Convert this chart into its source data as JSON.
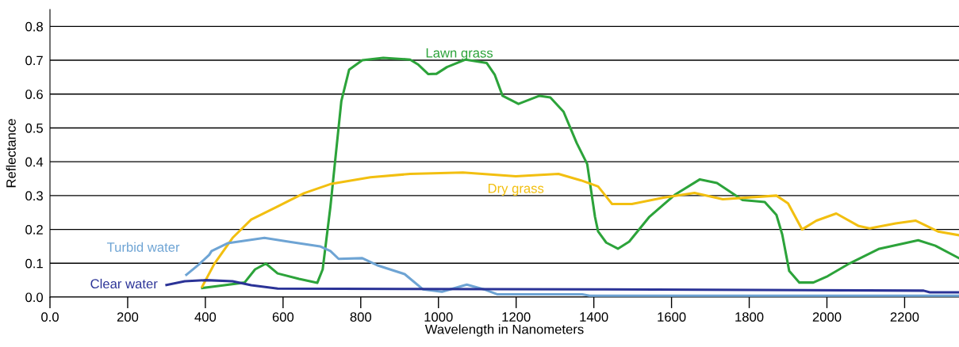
{
  "chart_data": {
    "type": "line",
    "xlabel": "Wavelength in Nanometers",
    "ylabel": "Reflectance",
    "xlim": [
      0,
      2340
    ],
    "ylim": [
      0,
      0.85
    ],
    "xticks": [
      {
        "value": 0,
        "label": "0.0"
      },
      200,
      400,
      600,
      800,
      1000,
      1200,
      1400,
      1600,
      1800,
      2000,
      2200
    ],
    "yticks": [
      {
        "value": 0,
        "label": "0.0"
      },
      0.1,
      0.2,
      0.3,
      0.4,
      0.5,
      0.6,
      0.7,
      0.8
    ],
    "grid": "y",
    "legend": false,
    "marker": "none",
    "line_style": "solid",
    "series": [
      {
        "name": "Lawn grass",
        "color": "#2ca33a",
        "x": [
          392,
          449,
          501,
          528,
          556,
          586,
          641,
          688,
          702,
          722,
          736,
          750,
          770,
          804,
          858,
          927,
          947,
          974,
          995,
          1022,
          1070,
          1124,
          1145,
          1165,
          1206,
          1260,
          1288,
          1322,
          1356,
          1383,
          1403,
          1411,
          1432,
          1462,
          1491,
          1542,
          1608,
          1673,
          1717,
          1783,
          1840,
          1870,
          1885,
          1903,
          1929,
          1965,
          2002,
          2059,
          2133,
          2235,
          2279,
          2340
        ],
        "values": [
          0.027,
          0.035,
          0.043,
          0.082,
          0.099,
          0.07,
          0.054,
          0.042,
          0.082,
          0.268,
          0.424,
          0.579,
          0.672,
          0.7,
          0.707,
          0.702,
          0.688,
          0.659,
          0.66,
          0.68,
          0.702,
          0.692,
          0.657,
          0.595,
          0.571,
          0.595,
          0.59,
          0.548,
          0.455,
          0.393,
          0.237,
          0.194,
          0.161,
          0.143,
          0.164,
          0.236,
          0.302,
          0.348,
          0.337,
          0.287,
          0.281,
          0.243,
          0.185,
          0.077,
          0.043,
          0.043,
          0.062,
          0.1,
          0.142,
          0.168,
          0.152,
          0.115
        ]
      },
      {
        "name": "Dry grass",
        "color": "#f2bf10",
        "x": [
          392,
          423,
          470,
          518,
          586,
          654,
          722,
          825,
          927,
          1063,
          1199,
          1309,
          1367,
          1411,
          1447,
          1498,
          1579,
          1659,
          1732,
          1870,
          1900,
          1936,
          1973,
          2024,
          2082,
          2110,
          2177,
          2228,
          2286,
          2340
        ],
        "values": [
          0.031,
          0.098,
          0.175,
          0.229,
          0.268,
          0.307,
          0.334,
          0.354,
          0.364,
          0.368,
          0.357,
          0.364,
          0.345,
          0.327,
          0.275,
          0.275,
          0.294,
          0.308,
          0.289,
          0.3,
          0.277,
          0.2,
          0.226,
          0.247,
          0.21,
          0.203,
          0.218,
          0.226,
          0.194,
          0.183
        ]
      },
      {
        "name": "Turbid water",
        "color": "#6ea4d4",
        "x": [
          351,
          382,
          410,
          416,
          457,
          552,
          620,
          695,
          722,
          743,
          804,
          845,
          913,
          960,
          1009,
          1073,
          1117,
          1152,
          1370,
          1389,
          2340
        ],
        "values": [
          0.066,
          0.095,
          0.125,
          0.136,
          0.159,
          0.175,
          0.163,
          0.15,
          0.136,
          0.113,
          0.115,
          0.093,
          0.068,
          0.023,
          0.016,
          0.037,
          0.023,
          0.008,
          0.008,
          0.004,
          0.004
        ]
      },
      {
        "name": "Clear water",
        "color": "#2b3397",
        "x": [
          300,
          347,
          402,
          470,
          518,
          586,
          927,
          1403,
          2249,
          2265,
          2340
        ],
        "values": [
          0.036,
          0.047,
          0.05,
          0.047,
          0.035,
          0.025,
          0.024,
          0.023,
          0.019,
          0.014,
          0.014
        ]
      }
    ]
  }
}
